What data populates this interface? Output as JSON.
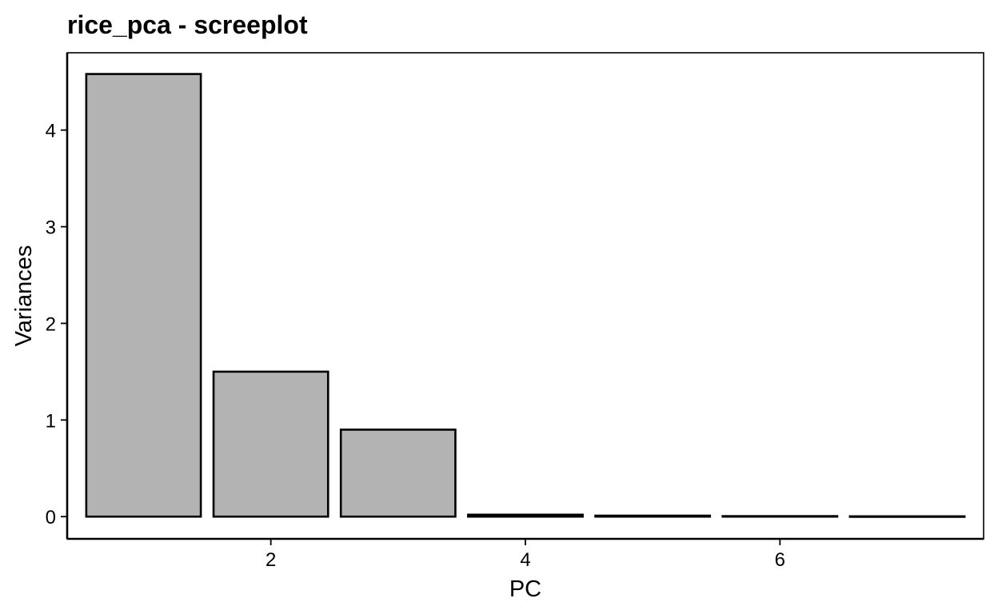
{
  "chart_data": {
    "type": "bar",
    "title": "rice_pca - screeplot",
    "xlabel": "PC",
    "ylabel": "Variances",
    "x": [
      1,
      2,
      3,
      4,
      5,
      6,
      7
    ],
    "values": [
      4.58,
      1.5,
      0.9,
      0.02,
      0.01,
      0.005,
      0.003
    ],
    "xlim": [
      0.4,
      7.6
    ],
    "ylim": [
      -0.23,
      4.8
    ],
    "x_ticks": [
      2,
      4,
      6
    ],
    "y_ticks": [
      0,
      1,
      2,
      3,
      4
    ],
    "x_tick_labels": [
      "2",
      "4",
      "6"
    ],
    "y_tick_labels": [
      "0",
      "1",
      "2",
      "3",
      "4"
    ],
    "bar_width": 0.9,
    "bar_fill": "#b3b3b3",
    "bar_stroke": "#000000",
    "grid": false,
    "legend": "none"
  }
}
